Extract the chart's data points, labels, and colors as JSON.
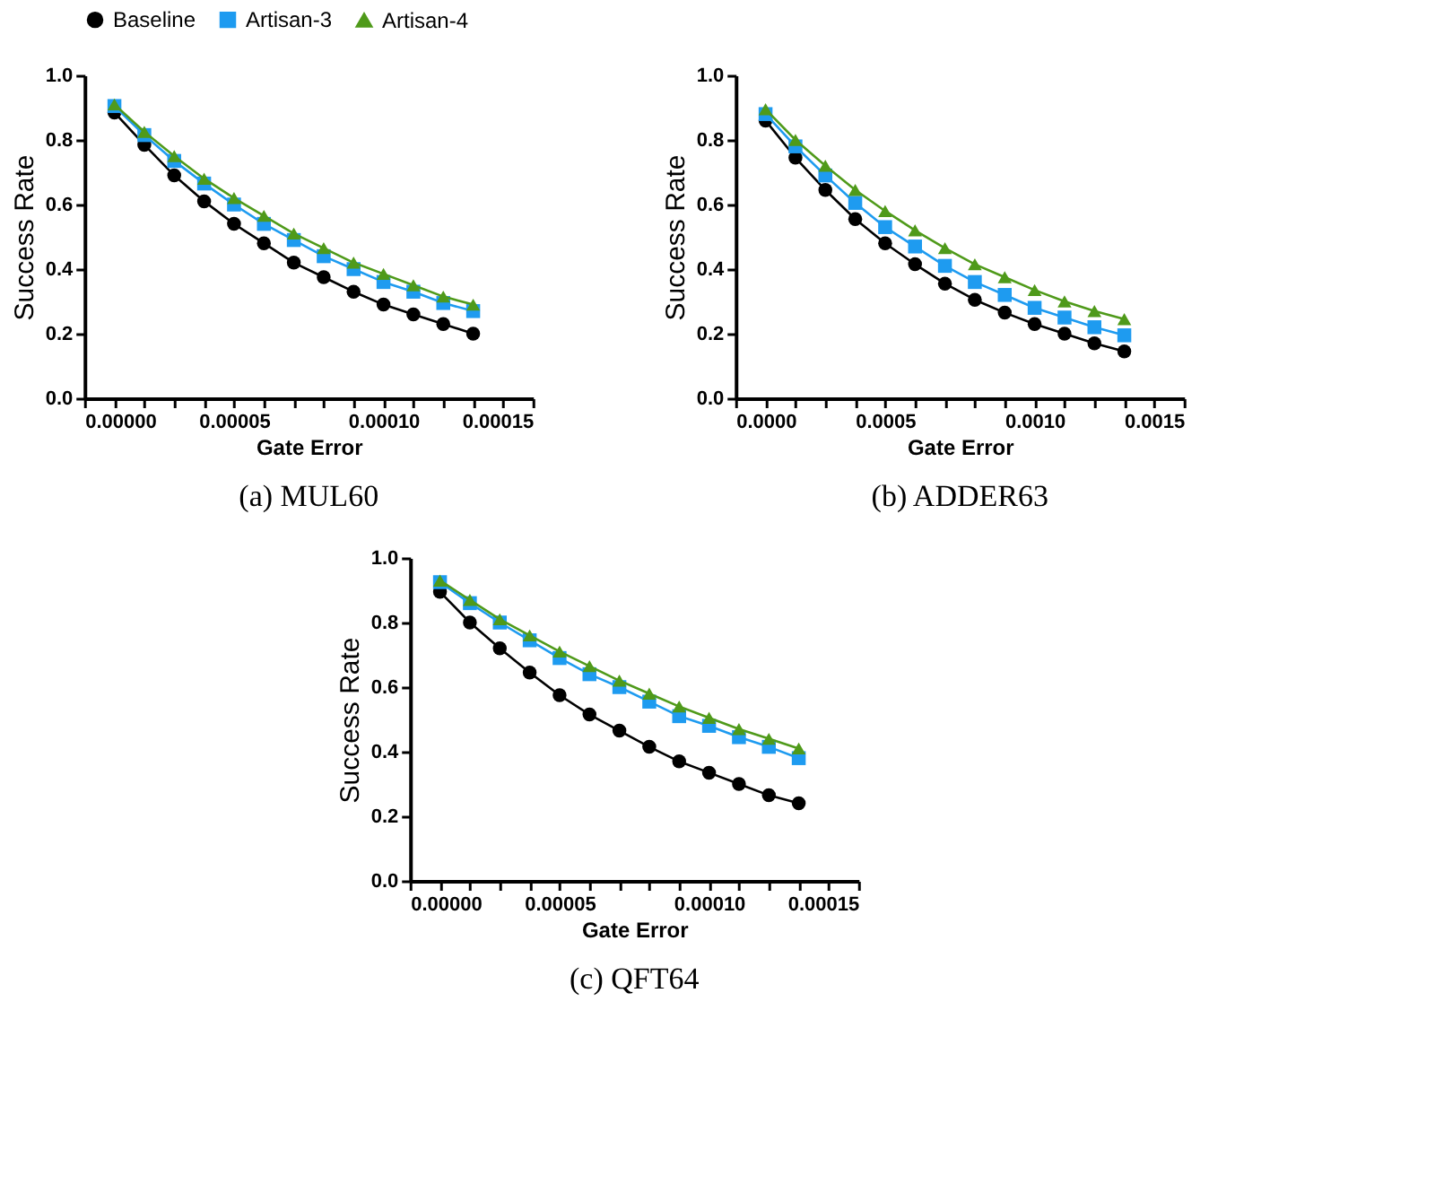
{
  "chart_data": [
    {
      "type": "line",
      "xlabel": "Gate Error",
      "ylabel": "Success Rate",
      "annotations": [
        "(a) MUL60"
      ],
      "legend": "top",
      "grid": false,
      "line_style": "solid",
      "x": [
        1e-05,
        2e-05,
        3e-05,
        4e-05,
        5e-05,
        6e-05,
        7e-05,
        8e-05,
        9e-05,
        0.0001,
        0.00011,
        0.00012,
        0.00013
      ],
      "xlim": [
        0,
        0.00015
      ],
      "ylim": [
        0,
        1
      ],
      "xticks": [
        {
          "value": 0,
          "label": "0.00000"
        },
        {
          "value": 1e-05,
          "label": null
        },
        {
          "value": 2e-05,
          "label": null
        },
        {
          "value": 3e-05,
          "label": null
        },
        {
          "value": 4e-05,
          "label": null
        },
        {
          "value": 5e-05,
          "label": "0.00005"
        },
        {
          "value": 6e-05,
          "label": null
        },
        {
          "value": 7e-05,
          "label": null
        },
        {
          "value": 8e-05,
          "label": null
        },
        {
          "value": 9e-05,
          "label": null
        },
        {
          "value": 0.0001,
          "label": "0.00010"
        },
        {
          "value": 0.00011,
          "label": null
        },
        {
          "value": 0.00012,
          "label": null
        },
        {
          "value": 0.00013,
          "label": null
        },
        {
          "value": 0.00014,
          "label": null
        },
        {
          "value": 0.00015,
          "label": "0.00015"
        }
      ],
      "yticks": [
        {
          "value": 0,
          "label": "0.0"
        },
        {
          "value": 0.2,
          "label": "0.2"
        },
        {
          "value": 0.4,
          "label": "0.4"
        },
        {
          "value": 0.6,
          "label": "0.6"
        },
        {
          "value": 0.8,
          "label": "0.8"
        },
        {
          "value": 1,
          "label": "1.0"
        }
      ],
      "series": [
        {
          "name": "Baseline",
          "color": "#000000",
          "marker": "circle",
          "values": [
            0.885,
            0.785,
            0.69,
            0.61,
            0.54,
            0.48,
            0.42,
            0.375,
            0.33,
            0.29,
            0.26,
            0.23,
            0.2
          ]
        },
        {
          "name": "Artisan-3",
          "color": "#1e9bf0",
          "marker": "square",
          "values": [
            0.905,
            0.815,
            0.735,
            0.665,
            0.6,
            0.54,
            0.49,
            0.44,
            0.4,
            0.36,
            0.33,
            0.295,
            0.27
          ]
        },
        {
          "name": "Artisan-4",
          "color": "#4f9a1a",
          "marker": "triangle",
          "values": [
            0.91,
            0.825,
            0.75,
            0.68,
            0.62,
            0.565,
            0.51,
            0.465,
            0.42,
            0.385,
            0.35,
            0.315,
            0.29
          ]
        }
      ]
    },
    {
      "type": "line",
      "xlabel": "Gate Error",
      "ylabel": "Success Rate",
      "annotations": [
        "(b) ADDER63"
      ],
      "legend": "top",
      "grid": false,
      "line_style": "solid",
      "x": [
        0.0001,
        0.0002,
        0.0003,
        0.0004,
        0.0005,
        0.0006,
        0.0007,
        0.0008,
        0.0009,
        0.001,
        0.0011,
        0.0012,
        0.0013
      ],
      "xlim": [
        0,
        0.0015
      ],
      "ylim": [
        0,
        1
      ],
      "xticks": [
        {
          "value": 0,
          "label": "0.0000"
        },
        {
          "value": 0.0001,
          "label": null
        },
        {
          "value": 0.0002,
          "label": null
        },
        {
          "value": 0.0003,
          "label": null
        },
        {
          "value": 0.0004,
          "label": null
        },
        {
          "value": 0.0005,
          "label": "0.0005"
        },
        {
          "value": 0.0006,
          "label": null
        },
        {
          "value": 0.0007,
          "label": null
        },
        {
          "value": 0.0008,
          "label": null
        },
        {
          "value": 0.0009,
          "label": null
        },
        {
          "value": 0.001,
          "label": "0.0010"
        },
        {
          "value": 0.0011,
          "label": null
        },
        {
          "value": 0.0012,
          "label": null
        },
        {
          "value": 0.0013,
          "label": null
        },
        {
          "value": 0.0014,
          "label": null
        },
        {
          "value": 0.0015,
          "label": "0.0015"
        }
      ],
      "yticks": [
        {
          "value": 0,
          "label": "0.0"
        },
        {
          "value": 0.2,
          "label": "0.2"
        },
        {
          "value": 0.4,
          "label": "0.4"
        },
        {
          "value": 0.6,
          "label": "0.6"
        },
        {
          "value": 0.8,
          "label": "0.8"
        },
        {
          "value": 1,
          "label": "1.0"
        }
      ],
      "series": [
        {
          "name": "Baseline",
          "color": "#000000",
          "marker": "circle",
          "values": [
            0.86,
            0.745,
            0.645,
            0.555,
            0.48,
            0.415,
            0.355,
            0.305,
            0.265,
            0.23,
            0.2,
            0.17,
            0.145
          ]
        },
        {
          "name": "Artisan-3",
          "color": "#1e9bf0",
          "marker": "square",
          "values": [
            0.88,
            0.78,
            0.69,
            0.605,
            0.53,
            0.47,
            0.41,
            0.36,
            0.32,
            0.28,
            0.25,
            0.22,
            0.195
          ]
        },
        {
          "name": "Artisan-4",
          "color": "#4f9a1a",
          "marker": "triangle",
          "values": [
            0.895,
            0.8,
            0.72,
            0.645,
            0.58,
            0.52,
            0.465,
            0.415,
            0.375,
            0.335,
            0.3,
            0.27,
            0.245
          ]
        }
      ]
    },
    {
      "type": "line",
      "xlabel": "Gate Error",
      "ylabel": "Success Rate",
      "annotations": [
        "(c) QFT64"
      ],
      "legend": "top",
      "grid": false,
      "line_style": "solid",
      "x": [
        1e-05,
        2e-05,
        3e-05,
        4e-05,
        5e-05,
        6e-05,
        7e-05,
        8e-05,
        9e-05,
        0.0001,
        0.00011,
        0.00012,
        0.00013
      ],
      "xlim": [
        0,
        0.00015
      ],
      "ylim": [
        0,
        1
      ],
      "xticks": [
        {
          "value": 0,
          "label": "0.00000"
        },
        {
          "value": 1e-05,
          "label": null
        },
        {
          "value": 2e-05,
          "label": null
        },
        {
          "value": 3e-05,
          "label": null
        },
        {
          "value": 4e-05,
          "label": null
        },
        {
          "value": 5e-05,
          "label": "0.00005"
        },
        {
          "value": 6e-05,
          "label": null
        },
        {
          "value": 7e-05,
          "label": null
        },
        {
          "value": 8e-05,
          "label": null
        },
        {
          "value": 9e-05,
          "label": null
        },
        {
          "value": 0.0001,
          "label": "0.00010"
        },
        {
          "value": 0.00011,
          "label": null
        },
        {
          "value": 0.00012,
          "label": null
        },
        {
          "value": 0.00013,
          "label": null
        },
        {
          "value": 0.00014,
          "label": null
        },
        {
          "value": 0.00015,
          "label": "0.00015"
        }
      ],
      "yticks": [
        {
          "value": 0,
          "label": "0.0"
        },
        {
          "value": 0.2,
          "label": "0.2"
        },
        {
          "value": 0.4,
          "label": "0.4"
        },
        {
          "value": 0.6,
          "label": "0.6"
        },
        {
          "value": 0.8,
          "label": "0.8"
        },
        {
          "value": 1,
          "label": "1.0"
        }
      ],
      "series": [
        {
          "name": "Baseline",
          "color": "#000000",
          "marker": "circle",
          "values": [
            0.895,
            0.8,
            0.72,
            0.645,
            0.575,
            0.515,
            0.465,
            0.415,
            0.37,
            0.335,
            0.3,
            0.265,
            0.24
          ]
        },
        {
          "name": "Artisan-3",
          "color": "#1e9bf0",
          "marker": "square",
          "values": [
            0.925,
            0.86,
            0.8,
            0.745,
            0.69,
            0.64,
            0.6,
            0.555,
            0.51,
            0.48,
            0.445,
            0.415,
            0.38
          ]
        },
        {
          "name": "Artisan-4",
          "color": "#4f9a1a",
          "marker": "triangle",
          "values": [
            0.93,
            0.87,
            0.81,
            0.76,
            0.71,
            0.665,
            0.62,
            0.58,
            0.54,
            0.505,
            0.47,
            0.44,
            0.41
          ]
        }
      ]
    }
  ]
}
